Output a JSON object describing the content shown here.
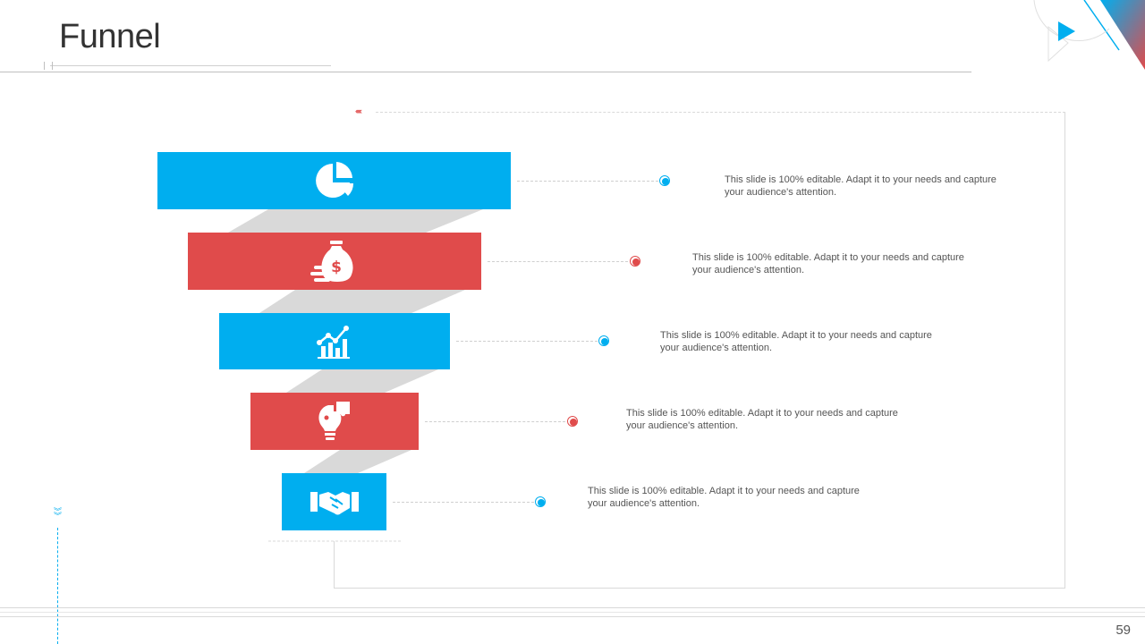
{
  "slide": {
    "title": "Funnel",
    "page_number": "59"
  },
  "funnel": {
    "stages": [
      {
        "icon": "pie-chart-icon",
        "color": "#00aeef",
        "description": "This slide is 100% editable. Adapt it to your needs and capture your audience's attention."
      },
      {
        "icon": "money-bag-icon",
        "color": "#e04b4b",
        "description": "This slide is 100% editable. Adapt it to your needs and capture your audience's attention."
      },
      {
        "icon": "growth-chart-icon",
        "color": "#00aeef",
        "description": "This slide is 100% editable. Adapt it to your needs and capture your audience's attention."
      },
      {
        "icon": "idea-bulb-puzzle-icon",
        "color": "#e04b4b",
        "description": "This slide is 100% editable. Adapt it to your needs and capture your audience's attention."
      },
      {
        "icon": "handshake-icon",
        "color": "#00aeef",
        "description": "This slide is 100% editable. Adapt it to your needs and capture your audience's attention."
      }
    ]
  },
  "colors": {
    "accent_blue": "#00aeef",
    "accent_red": "#e04b4b"
  }
}
